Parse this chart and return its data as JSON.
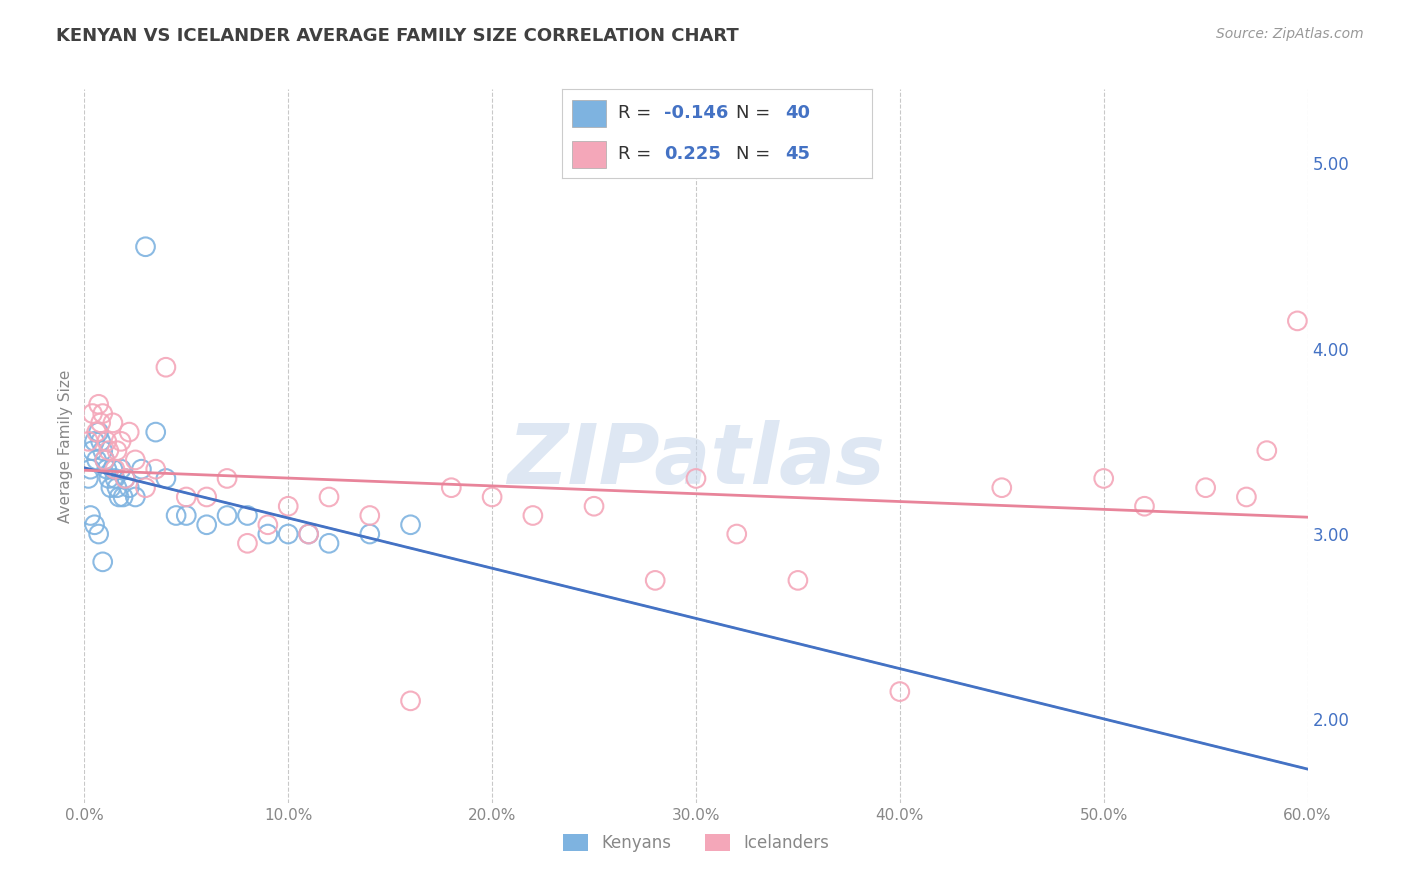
{
  "title": "KENYAN VS ICELANDER AVERAGE FAMILY SIZE CORRELATION CHART",
  "source_text": "Source: ZipAtlas.com",
  "ylabel": "Average Family Size",
  "xlim": [
    0.0,
    0.6
  ],
  "ylim": [
    1.55,
    5.4
  ],
  "yticks_right": [
    2.0,
    3.0,
    4.0,
    5.0
  ],
  "xticks": [
    0.0,
    0.1,
    0.2,
    0.3,
    0.4,
    0.5,
    0.6
  ],
  "xtick_labels": [
    "0.0%",
    "10.0%",
    "20.0%",
    "30.0%",
    "40.0%",
    "50.0%",
    "60.0%"
  ],
  "kenyan_color": "#7EB3E0",
  "icelander_color": "#F4A7B9",
  "kenyan_R": -0.146,
  "kenyan_N": 40,
  "icelander_R": 0.225,
  "icelander_N": 45,
  "kenyan_line_color": "#4472C4",
  "icelander_line_color": "#E8849A",
  "grid_color": "#BBBBBB",
  "background_color": "#FFFFFF",
  "watermark": "ZIPatlas",
  "watermark_color": "#C8D8EC",
  "title_color": "#404040",
  "axis_color": "#888888",
  "kenyan_x": [
    0.002,
    0.003,
    0.004,
    0.005,
    0.006,
    0.007,
    0.008,
    0.009,
    0.01,
    0.011,
    0.012,
    0.013,
    0.014,
    0.015,
    0.016,
    0.017,
    0.018,
    0.019,
    0.02,
    0.022,
    0.025,
    0.028,
    0.03,
    0.035,
    0.04,
    0.045,
    0.05,
    0.06,
    0.07,
    0.08,
    0.09,
    0.1,
    0.11,
    0.12,
    0.14,
    0.16,
    0.003,
    0.005,
    0.007,
    0.009
  ],
  "kenyan_y": [
    3.3,
    3.35,
    3.45,
    3.5,
    3.4,
    3.55,
    3.5,
    3.45,
    3.4,
    3.35,
    3.3,
    3.25,
    3.35,
    3.3,
    3.25,
    3.2,
    3.35,
    3.2,
    3.3,
    3.25,
    3.2,
    3.35,
    4.55,
    3.55,
    3.3,
    3.1,
    3.1,
    3.05,
    3.1,
    3.1,
    3.0,
    3.0,
    3.0,
    2.95,
    3.0,
    3.05,
    3.1,
    3.05,
    3.0,
    2.85
  ],
  "icelander_x": [
    0.002,
    0.004,
    0.006,
    0.007,
    0.008,
    0.009,
    0.01,
    0.011,
    0.012,
    0.014,
    0.015,
    0.016,
    0.018,
    0.02,
    0.022,
    0.025,
    0.03,
    0.035,
    0.04,
    0.05,
    0.06,
    0.07,
    0.08,
    0.09,
    0.1,
    0.11,
    0.12,
    0.14,
    0.16,
    0.18,
    0.2,
    0.22,
    0.25,
    0.28,
    0.3,
    0.32,
    0.35,
    0.4,
    0.45,
    0.5,
    0.52,
    0.55,
    0.57,
    0.58,
    0.595
  ],
  "icelander_y": [
    3.5,
    3.65,
    3.55,
    3.7,
    3.6,
    3.65,
    3.4,
    3.5,
    3.45,
    3.6,
    3.35,
    3.45,
    3.5,
    3.3,
    3.55,
    3.4,
    3.25,
    3.35,
    3.9,
    3.2,
    3.2,
    3.3,
    2.95,
    3.05,
    3.15,
    3.0,
    3.2,
    3.1,
    2.1,
    3.25,
    3.2,
    3.1,
    3.15,
    2.75,
    3.3,
    3.0,
    2.75,
    2.15,
    3.25,
    3.3,
    3.15,
    3.25,
    3.2,
    3.45,
    4.15
  ]
}
